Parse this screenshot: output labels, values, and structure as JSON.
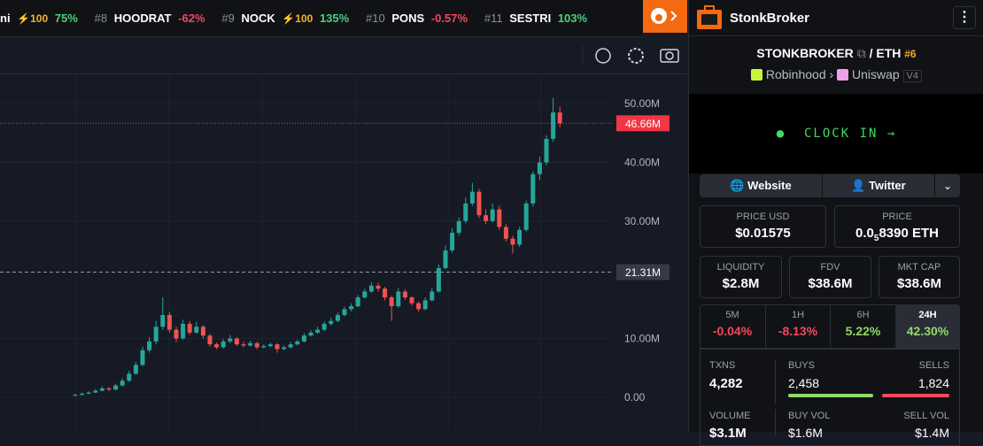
{
  "ticker": [
    {
      "name": "ni",
      "boost": "⚡100",
      "change": "75%"
    },
    {
      "rank": "#8",
      "name": "HOODRAT",
      "change": "-62%"
    },
    {
      "rank": "#9",
      "name": "NOCK",
      "boost": "⚡100",
      "change": "135%"
    },
    {
      "rank": "#10",
      "name": "PONS",
      "change": "-0.57%"
    },
    {
      "rank": "#11",
      "name": "SESTRI",
      "change": "103%"
    }
  ],
  "header": {
    "title": "StonkBroker"
  },
  "pair": {
    "base": "STONKBROKER",
    "separator": "/",
    "quote": "ETH",
    "rank": "#6",
    "chain": "Robinhood",
    "dex": "Uniswap",
    "version": "V4"
  },
  "clock_in": "CLOCK IN",
  "links": [
    "Website",
    "Twitter"
  ],
  "prices": [
    {
      "label": "PRICE USD",
      "value": "$0.01575"
    },
    {
      "label": "PRICE",
      "value": "0.0",
      "subscript": "5",
      "value_rest": "8390 ETH"
    }
  ],
  "stats": [
    {
      "label": "LIQUIDITY",
      "value": "$2.8M"
    },
    {
      "label": "FDV",
      "value": "$38.6M"
    },
    {
      "label": "MKT CAP",
      "value": "$38.6M"
    }
  ],
  "timeframes": [
    {
      "label": "5M",
      "change": "-0.04%"
    },
    {
      "label": "1H",
      "change": "-8.13%"
    },
    {
      "label": "6H",
      "change": "5.22%"
    },
    {
      "label": "24H",
      "change": "42.30%"
    }
  ],
  "txns": {
    "label": "TXNS",
    "value": "4,282",
    "buys_label": "BUYS",
    "buys": "2,458",
    "sells_label": "SELLS",
    "sells": "1,824"
  },
  "volume": {
    "label": "VOLUME",
    "value": "$3.1M",
    "buys_label": "BUY VOL",
    "buys": "$1.6M",
    "sells_label": "SELL VOL",
    "sells": "$1.4M"
  },
  "chart": {
    "type": "candlestick",
    "up_color": "#26a69a",
    "down_color": "#ef5350",
    "ylim": [
      -5.9,
      55
    ],
    "yticks": [
      {
        "value": 0,
        "label": "0.00"
      },
      {
        "value": 10,
        "label": "10.00M"
      },
      {
        "value": 30,
        "label": "30.00M"
      },
      {
        "value": 40,
        "label": "40.00M"
      },
      {
        "value": 50,
        "label": "50.00M"
      }
    ],
    "markers": [
      {
        "value": 46.66,
        "label": "46.66M",
        "color": "#f23645"
      },
      {
        "value": 21.31,
        "label": "21.31M",
        "color": "#363a45"
      }
    ],
    "candles": [
      [
        0.3,
        0.6,
        0.2,
        0.4
      ],
      [
        0.4,
        0.8,
        0.3,
        0.6
      ],
      [
        0.6,
        1.0,
        0.5,
        0.8
      ],
      [
        0.8,
        1.4,
        0.7,
        1.1
      ],
      [
        1.1,
        1.9,
        1.0,
        1.5
      ],
      [
        1.5,
        1.7,
        1.1,
        1.3
      ],
      [
        1.3,
        2.3,
        1.2,
        2.0
      ],
      [
        2.0,
        3.2,
        1.8,
        2.8
      ],
      [
        2.8,
        4.5,
        2.6,
        4.0
      ],
      [
        4.0,
        6.0,
        3.8,
        5.5
      ],
      [
        5.5,
        8.6,
        5.3,
        8.0
      ],
      [
        8.0,
        10.2,
        7.6,
        9.5
      ],
      [
        9.5,
        13.0,
        9.0,
        12.0
      ],
      [
        12.0,
        17.0,
        11.5,
        14.0
      ],
      [
        14.0,
        14.5,
        11.0,
        11.5
      ],
      [
        11.5,
        12.0,
        9.4,
        10.0
      ],
      [
        10.0,
        13.2,
        9.8,
        12.5
      ],
      [
        12.5,
        13.0,
        10.6,
        11.0
      ],
      [
        11.0,
        12.8,
        10.8,
        12.0
      ],
      [
        12.0,
        12.3,
        10.0,
        10.5
      ],
      [
        10.5,
        10.8,
        8.6,
        9.0
      ],
      [
        9.0,
        9.3,
        8.2,
        8.5
      ],
      [
        8.5,
        9.9,
        8.3,
        9.5
      ],
      [
        9.5,
        10.6,
        9.2,
        10.0
      ],
      [
        10.0,
        10.2,
        8.7,
        9.0
      ],
      [
        9.0,
        9.4,
        8.5,
        8.8
      ],
      [
        8.8,
        9.6,
        8.6,
        9.2
      ],
      [
        9.2,
        9.4,
        8.2,
        8.5
      ],
      [
        8.5,
        9.0,
        8.3,
        8.7
      ],
      [
        8.7,
        9.3,
        8.5,
        9.0
      ],
      [
        9.0,
        9.2,
        7.6,
        8.2
      ],
      [
        8.2,
        8.8,
        8.0,
        8.5
      ],
      [
        8.5,
        9.4,
        8.3,
        9.0
      ],
      [
        9.0,
        9.8,
        8.8,
        9.5
      ],
      [
        9.5,
        10.9,
        9.3,
        10.5
      ],
      [
        10.5,
        11.4,
        10.3,
        11.0
      ],
      [
        11.0,
        12.0,
        10.8,
        11.5
      ],
      [
        11.5,
        12.9,
        11.3,
        12.5
      ],
      [
        12.5,
        13.5,
        12.2,
        13.0
      ],
      [
        13.0,
        14.4,
        12.8,
        14.0
      ],
      [
        14.0,
        15.4,
        13.8,
        15.0
      ],
      [
        15.0,
        16.0,
        14.6,
        15.5
      ],
      [
        15.5,
        17.4,
        15.3,
        17.0
      ],
      [
        17.0,
        18.5,
        16.8,
        18.0
      ],
      [
        18.0,
        19.6,
        17.8,
        19.0
      ],
      [
        19.0,
        19.5,
        18.0,
        18.5
      ],
      [
        18.5,
        18.8,
        16.5,
        17.0
      ],
      [
        17.0,
        17.3,
        13.0,
        15.5
      ],
      [
        15.5,
        18.6,
        15.2,
        18.0
      ],
      [
        18.0,
        18.4,
        16.6,
        17.0
      ],
      [
        17.0,
        17.2,
        15.6,
        16.0
      ],
      [
        16.0,
        16.3,
        14.6,
        15.0
      ],
      [
        15.0,
        17.0,
        14.8,
        16.5
      ],
      [
        16.5,
        18.6,
        16.3,
        18.0
      ],
      [
        18.0,
        22.6,
        17.8,
        22.0
      ],
      [
        22.0,
        25.8,
        21.8,
        25.0
      ],
      [
        25.0,
        28.8,
        24.6,
        28.0
      ],
      [
        28.0,
        30.6,
        27.5,
        30.0
      ],
      [
        30.0,
        34.0,
        29.6,
        33.0
      ],
      [
        33.0,
        36.5,
        32.6,
        35.0
      ],
      [
        35.0,
        35.5,
        30.5,
        31.0
      ],
      [
        31.0,
        32.0,
        29.5,
        30.0
      ],
      [
        30.0,
        33.0,
        29.8,
        32.0
      ],
      [
        32.0,
        32.6,
        28.5,
        29.0
      ],
      [
        29.0,
        29.5,
        26.5,
        27.0
      ],
      [
        27.0,
        27.5,
        24.5,
        26.0
      ],
      [
        26.0,
        29.0,
        25.6,
        28.5
      ],
      [
        28.5,
        33.5,
        28.2,
        33.0
      ],
      [
        33.0,
        38.5,
        32.5,
        38.0
      ],
      [
        38.0,
        41.0,
        37.0,
        40.0
      ],
      [
        40.0,
        44.6,
        39.5,
        44.0
      ],
      [
        44.0,
        51.0,
        43.5,
        48.5
      ],
      [
        48.5,
        49.5,
        46.0,
        46.66
      ]
    ]
  }
}
